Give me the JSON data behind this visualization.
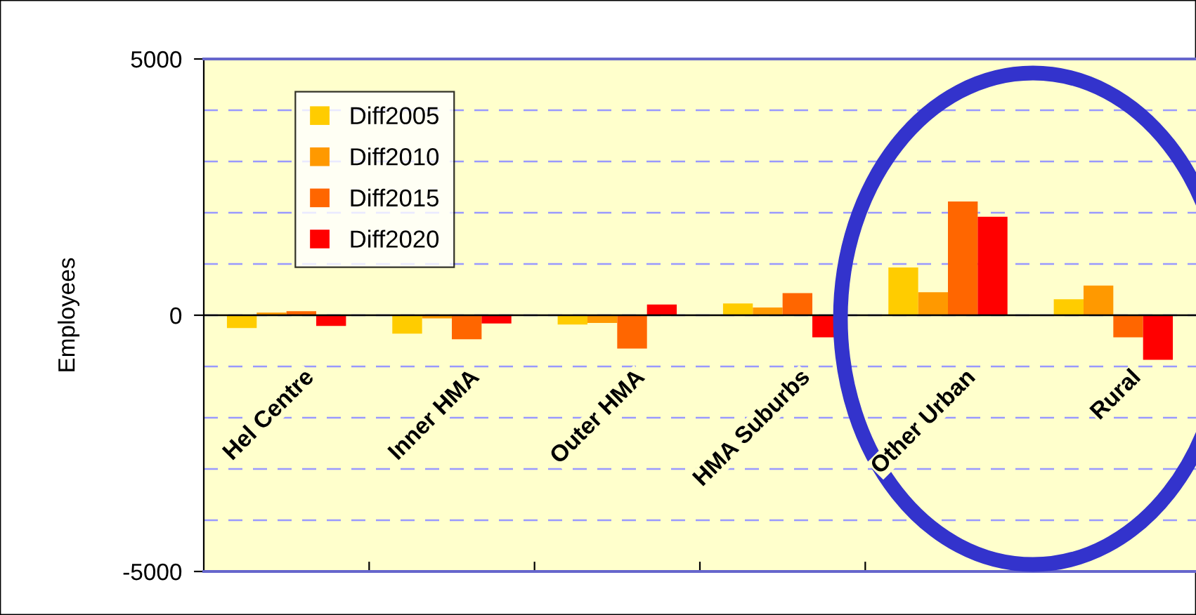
{
  "chart_data": {
    "type": "bar",
    "ylabel": "Employees",
    "categories": [
      "Hel Centre",
      "Inner HMA",
      "Outer HMA",
      "HMA Suburbs",
      "Other Urban",
      "Rural"
    ],
    "series": [
      {
        "name": "Diff2005",
        "color": "#ffcc00",
        "values": [
          -250,
          -360,
          -180,
          230,
          930,
          310
        ]
      },
      {
        "name": "Diff2010",
        "color": "#ff9900",
        "values": [
          50,
          -60,
          -150,
          150,
          450,
          580
        ]
      },
      {
        "name": "Diff2015",
        "color": "#ff6600",
        "values": [
          80,
          -470,
          -650,
          430,
          2220,
          -430
        ]
      },
      {
        "name": "Diff2020",
        "color": "#ff0000",
        "values": [
          -210,
          -160,
          210,
          -430,
          1920,
          -870
        ]
      }
    ],
    "ylim": [
      -5000,
      5000
    ],
    "yticks": [
      -5000,
      {
        "value": -4000,
        "label": null
      },
      {
        "value": -3000,
        "label": null
      },
      {
        "value": -2000,
        "label": null
      },
      {
        "value": -1000,
        "label": null
      },
      0,
      {
        "value": 1000,
        "label": null
      },
      {
        "value": 2000,
        "label": null
      },
      {
        "value": 3000,
        "label": null
      },
      {
        "value": 4000,
        "label": null
      },
      5000
    ],
    "grid": "y",
    "legend": "top left"
  }
}
